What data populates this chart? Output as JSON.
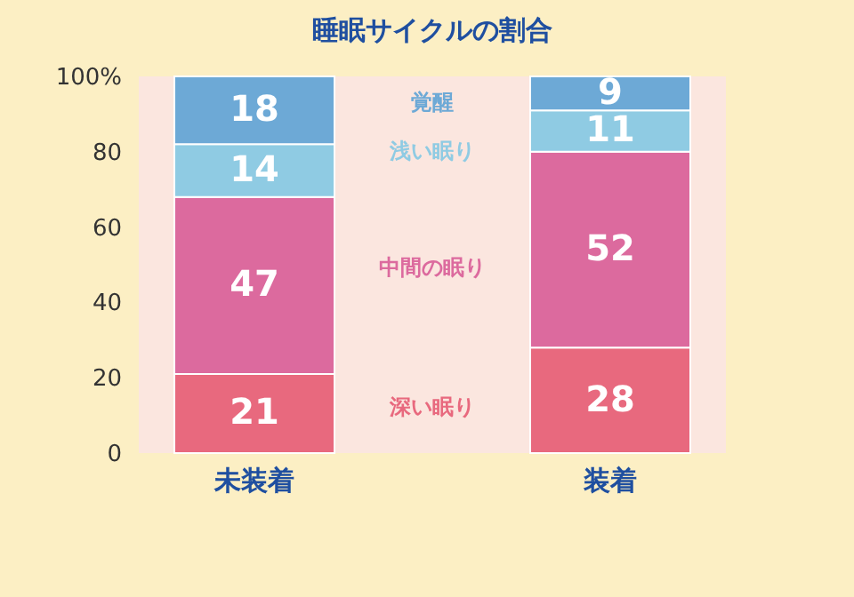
{
  "chart_data": {
    "type": "bar",
    "title": "睡眠サイクルの割合",
    "categories": [
      "未装着",
      "装着"
    ],
    "stacked": true,
    "data_labels": true,
    "legend": false,
    "ylim": [
      0,
      100
    ],
    "yticks": [
      0,
      20,
      40,
      60,
      80,
      {
        "value": 100,
        "label": "100%"
      }
    ],
    "series": [
      {
        "name": "深い眠り",
        "color": "#e8697e",
        "values": [
          21,
          28
        ]
      },
      {
        "name": "中間の眠り",
        "color": "#dc6a9e",
        "values": [
          47,
          52
        ]
      },
      {
        "name": "浅い眠り",
        "color": "#8fcbe3",
        "values": [
          14,
          11
        ]
      },
      {
        "name": "覚醒",
        "color": "#6da9d6",
        "values": [
          18,
          9
        ]
      }
    ]
  }
}
